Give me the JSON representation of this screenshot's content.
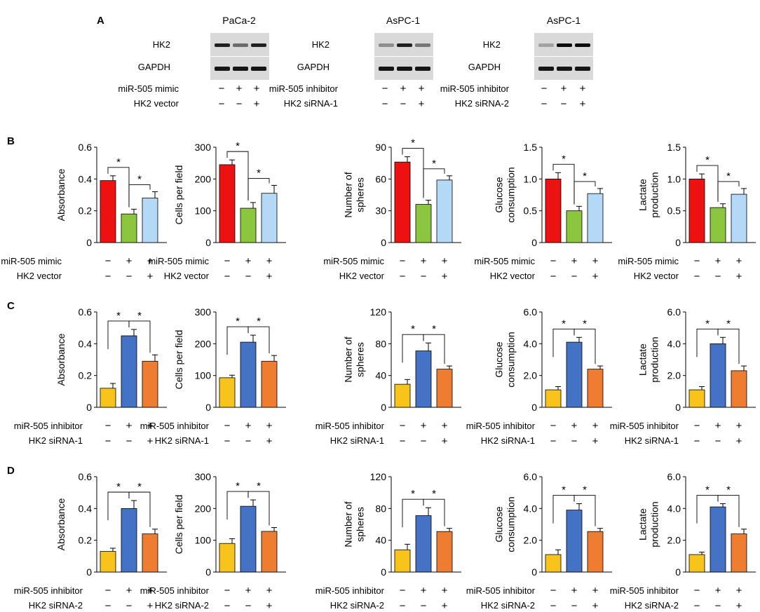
{
  "colors": {
    "red": "#ee1111",
    "green": "#8cc63f",
    "lightblue": "#b3d9f7",
    "yellow": "#f8c31a",
    "blue": "#4472c4",
    "orange": "#ee7d31"
  },
  "panel_letters": [
    "A",
    "B",
    "C",
    "D"
  ],
  "blots": [
    {
      "cell_line": "PaCa-2",
      "target": "HK2",
      "loading": "GAPDH",
      "row1_label": "miR-505 mimic",
      "row1_signs": [
        "−",
        "+",
        "+"
      ],
      "row2_label": "HK2 vector",
      "row2_signs": [
        "−",
        "−",
        "+"
      ],
      "band_intensity": [
        0.85,
        0.5,
        0.85
      ]
    },
    {
      "cell_line": "AsPC-1",
      "target": "HK2",
      "loading": "GAPDH",
      "row1_label": "miR-505 inhibitor",
      "row1_signs": [
        "−",
        "+",
        "+"
      ],
      "row2_label": "HK2 siRNA-1",
      "row2_signs": [
        "−",
        "−",
        "+"
      ],
      "band_intensity": [
        0.35,
        0.85,
        0.45
      ]
    },
    {
      "cell_line": "AsPC-1",
      "target": "HK2",
      "loading": "GAPDH",
      "row1_label": "miR-505 inhibitor",
      "row1_signs": [
        "−",
        "+",
        "+"
      ],
      "row2_label": "HK2 siRNA-2",
      "row2_signs": [
        "−",
        "−",
        "+"
      ],
      "band_intensity": [
        0.25,
        0.95,
        0.95
      ]
    }
  ],
  "rows": [
    {
      "letter": "B",
      "bar_colors": [
        "#ee1111",
        "#8cc63f",
        "#b3d9f7"
      ],
      "row1_label": "miR-505 mimic",
      "row1_signs": [
        "−",
        "+",
        "+"
      ],
      "row2_label": "HK2 vector",
      "row2_signs": [
        "−",
        "−",
        "+"
      ]
    },
    {
      "letter": "C",
      "bar_colors": [
        "#f8c31a",
        "#4472c4",
        "#ee7d31"
      ],
      "row1_label": "miR-505 inhibitor",
      "row1_signs": [
        "−",
        "+",
        "+"
      ],
      "row2_label": "HK2 siRNA-1",
      "row2_signs": [
        "−",
        "−",
        "+"
      ]
    },
    {
      "letter": "D",
      "bar_colors": [
        "#f8c31a",
        "#4472c4",
        "#ee7d31"
      ],
      "row1_label": "miR-505 inhibitor",
      "row1_signs": [
        "−",
        "+",
        "+"
      ],
      "row2_label": "HK2 siRNA-2",
      "row2_signs": [
        "−",
        "−",
        "+"
      ]
    }
  ],
  "chart_data": [
    {
      "panel": "B",
      "type": "bar",
      "ylabel": [
        "Absorbance"
      ],
      "ylim": [
        0,
        0.6
      ],
      "yticks": [
        "0",
        "0.2",
        "0.4",
        "0.6"
      ],
      "values": [
        0.39,
        0.18,
        0.28
      ],
      "errors": [
        0.03,
        0.03,
        0.04
      ],
      "significance": [
        {
          "from": 0,
          "to": 1,
          "label": "*"
        },
        {
          "from": 1,
          "to": 2,
          "label": "*"
        }
      ]
    },
    {
      "panel": "B",
      "type": "bar",
      "ylabel": [
        "Cells per field"
      ],
      "ylim": [
        0,
        300
      ],
      "yticks": [
        "0",
        "100",
        "200",
        "300"
      ],
      "values": [
        245,
        108,
        155
      ],
      "errors": [
        15,
        18,
        25
      ],
      "significance": [
        {
          "from": 0,
          "to": 1,
          "label": "*"
        },
        {
          "from": 1,
          "to": 2,
          "label": "*"
        }
      ]
    },
    {
      "panel": "B",
      "type": "bar",
      "ylabel": [
        "Number of",
        "spheres"
      ],
      "ylim": [
        0,
        90
      ],
      "yticks": [
        "0",
        "30",
        "60",
        "90"
      ],
      "values": [
        76,
        36,
        59
      ],
      "errors": [
        5,
        4,
        4
      ],
      "significance": [
        {
          "from": 0,
          "to": 1,
          "label": "*"
        },
        {
          "from": 1,
          "to": 2,
          "label": "*"
        }
      ]
    },
    {
      "panel": "B",
      "type": "bar",
      "ylabel": [
        "Glucose",
        "consumption"
      ],
      "ylim": [
        0,
        1.5
      ],
      "yticks": [
        "0",
        "0.5",
        "1.0",
        "1.5"
      ],
      "values": [
        1.0,
        0.5,
        0.77
      ],
      "errors": [
        0.1,
        0.07,
        0.08
      ],
      "significance": [
        {
          "from": 0,
          "to": 1,
          "label": "*"
        },
        {
          "from": 1,
          "to": 2,
          "label": "*"
        }
      ]
    },
    {
      "panel": "B",
      "type": "bar",
      "ylabel": [
        "Lactate",
        "production"
      ],
      "ylim": [
        0,
        1.5
      ],
      "yticks": [
        "0",
        "0.5",
        "1.0",
        "1.5"
      ],
      "values": [
        1.0,
        0.55,
        0.76
      ],
      "errors": [
        0.08,
        0.06,
        0.09
      ],
      "significance": [
        {
          "from": 0,
          "to": 1,
          "label": "*"
        },
        {
          "from": 1,
          "to": 2,
          "label": "*"
        }
      ]
    },
    {
      "panel": "C",
      "type": "bar",
      "ylabel": [
        "Absorbance"
      ],
      "ylim": [
        0,
        0.6
      ],
      "yticks": [
        "0",
        "0.2",
        "0.4",
        "0.6"
      ],
      "values": [
        0.12,
        0.45,
        0.29
      ],
      "errors": [
        0.03,
        0.04,
        0.04
      ],
      "significance": [
        {
          "from": 0,
          "to": 1,
          "label": "*"
        },
        {
          "from": 1,
          "to": 2,
          "label": "*"
        }
      ]
    },
    {
      "panel": "C",
      "type": "bar",
      "ylabel": [
        "Cells per field"
      ],
      "ylim": [
        0,
        300
      ],
      "yticks": [
        "0",
        "100",
        "200",
        "300"
      ],
      "values": [
        93,
        205,
        145
      ],
      "errors": [
        8,
        22,
        18
      ],
      "significance": [
        {
          "from": 0,
          "to": 1,
          "label": "*"
        },
        {
          "from": 1,
          "to": 2,
          "label": "*"
        }
      ]
    },
    {
      "panel": "C",
      "type": "bar",
      "ylabel": [
        "Number of",
        "spheres"
      ],
      "ylim": [
        0,
        120
      ],
      "yticks": [
        "0",
        "40",
        "80",
        "120"
      ],
      "values": [
        29,
        71,
        48
      ],
      "errors": [
        6,
        10,
        4
      ],
      "significance": [
        {
          "from": 0,
          "to": 1,
          "label": "*"
        },
        {
          "from": 1,
          "to": 2,
          "label": "*"
        }
      ]
    },
    {
      "panel": "C",
      "type": "bar",
      "ylabel": [
        "Glucose",
        "consumption"
      ],
      "ylim": [
        0,
        6.0
      ],
      "yticks": [
        "0",
        "2.0",
        "4.0",
        "6.0"
      ],
      "values": [
        1.1,
        4.1,
        2.4
      ],
      "errors": [
        0.2,
        0.3,
        0.2
      ],
      "significance": [
        {
          "from": 0,
          "to": 1,
          "label": "*"
        },
        {
          "from": 1,
          "to": 2,
          "label": "*"
        }
      ]
    },
    {
      "panel": "C",
      "type": "bar",
      "ylabel": [
        "Lactate",
        "production"
      ],
      "ylim": [
        0,
        6.0
      ],
      "yticks": [
        "0",
        "2.0",
        "4.0",
        "6.0"
      ],
      "values": [
        1.1,
        4.0,
        2.3
      ],
      "errors": [
        0.2,
        0.4,
        0.3
      ],
      "significance": [
        {
          "from": 0,
          "to": 1,
          "label": "*"
        },
        {
          "from": 1,
          "to": 2,
          "label": "*"
        }
      ]
    },
    {
      "panel": "D",
      "type": "bar",
      "ylabel": [
        "Absorbance"
      ],
      "ylim": [
        0,
        0.6
      ],
      "yticks": [
        "0",
        "0.2",
        "0.4",
        "0.6"
      ],
      "values": [
        0.13,
        0.4,
        0.24
      ],
      "errors": [
        0.02,
        0.05,
        0.03
      ],
      "significance": [
        {
          "from": 0,
          "to": 1,
          "label": "*"
        },
        {
          "from": 1,
          "to": 2,
          "label": "*"
        }
      ]
    },
    {
      "panel": "D",
      "type": "bar",
      "ylabel": [
        "Cells per field"
      ],
      "ylim": [
        0,
        300
      ],
      "yticks": [
        "0",
        "100",
        "200",
        "300"
      ],
      "values": [
        90,
        207,
        128
      ],
      "errors": [
        15,
        20,
        12
      ],
      "significance": [
        {
          "from": 0,
          "to": 1,
          "label": "*"
        },
        {
          "from": 1,
          "to": 2,
          "label": "*"
        }
      ]
    },
    {
      "panel": "D",
      "type": "bar",
      "ylabel": [
        "Number of",
        "spheres"
      ],
      "ylim": [
        0,
        120
      ],
      "yticks": [
        "0",
        "40",
        "80",
        "120"
      ],
      "values": [
        28,
        71,
        51
      ],
      "errors": [
        7,
        10,
        4
      ],
      "significance": [
        {
          "from": 0,
          "to": 1,
          "label": "*"
        },
        {
          "from": 1,
          "to": 2,
          "label": "*"
        }
      ]
    },
    {
      "panel": "D",
      "type": "bar",
      "ylabel": [
        "Glucose",
        "consumption"
      ],
      "ylim": [
        0,
        6.0
      ],
      "yticks": [
        "0",
        "2.0",
        "4.0",
        "6.0"
      ],
      "values": [
        1.1,
        3.9,
        2.55
      ],
      "errors": [
        0.3,
        0.4,
        0.2
      ],
      "significance": [
        {
          "from": 0,
          "to": 1,
          "label": "*"
        },
        {
          "from": 1,
          "to": 2,
          "label": "*"
        }
      ]
    },
    {
      "panel": "D",
      "type": "bar",
      "ylabel": [
        "Lactate",
        "production"
      ],
      "ylim": [
        0,
        6.0
      ],
      "yticks": [
        "0",
        "2.0",
        "4.0",
        "6.0"
      ],
      "values": [
        1.1,
        4.1,
        2.4
      ],
      "errors": [
        0.15,
        0.2,
        0.3
      ],
      "significance": [
        {
          "from": 0,
          "to": 1,
          "label": "*"
        },
        {
          "from": 1,
          "to": 2,
          "label": "*"
        }
      ]
    }
  ]
}
